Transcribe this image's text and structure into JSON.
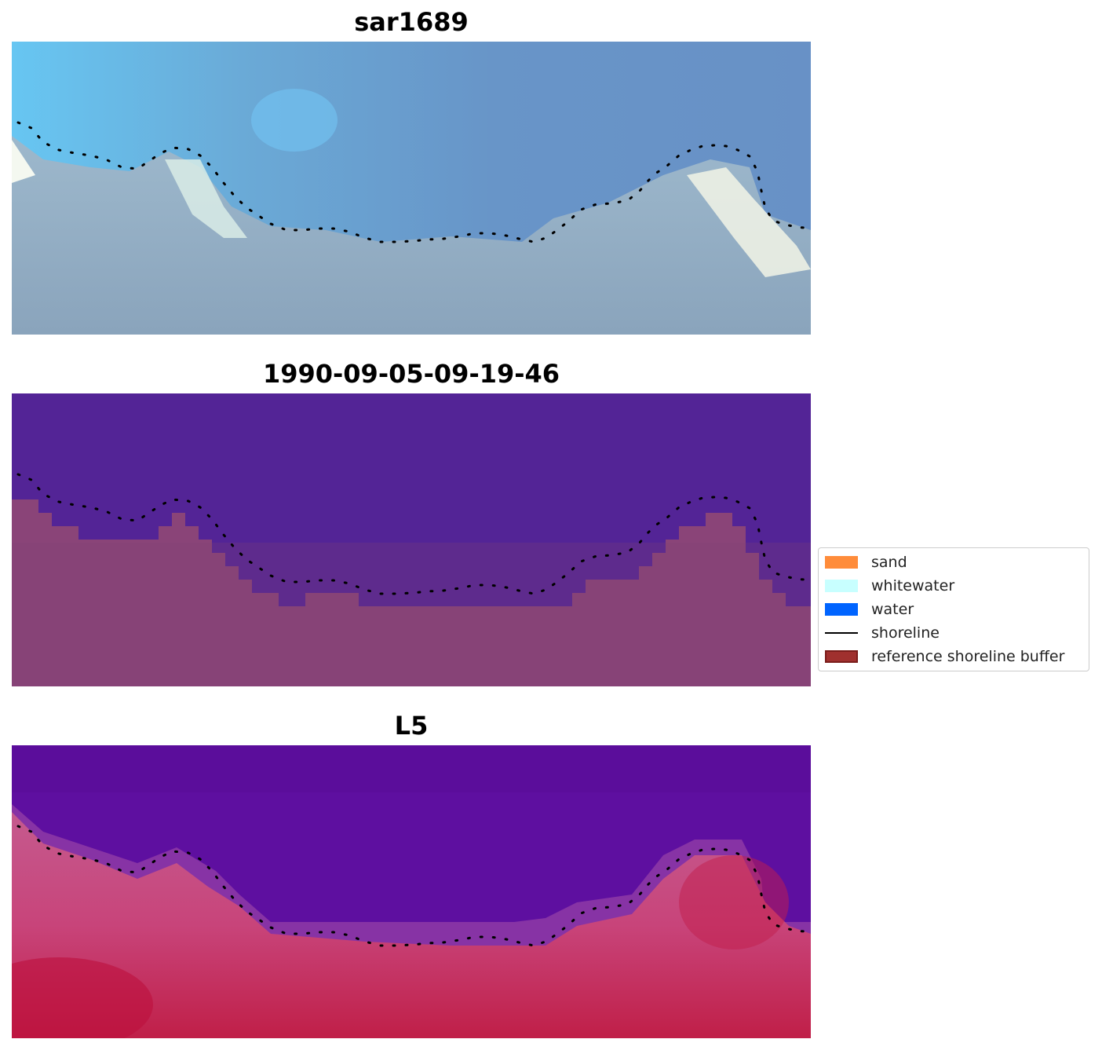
{
  "panels": [
    {
      "title": "sar1689",
      "kind": "rgb"
    },
    {
      "title": "1990-09-05-09-19-46",
      "kind": "classified"
    },
    {
      "title": "L5",
      "kind": "index"
    }
  ],
  "legend": {
    "items": [
      {
        "label": "sand",
        "color": "#ff8c3a",
        "type": "patch"
      },
      {
        "label": "whitewater",
        "color": "#c8ffff",
        "type": "patch"
      },
      {
        "label": "water",
        "color": "#0064ff",
        "type": "patch"
      },
      {
        "label": "shoreline",
        "color": "#000000",
        "type": "line"
      },
      {
        "label": "reference shoreline buffer",
        "color": "#a0302e",
        "type": "patch"
      }
    ]
  },
  "colors": {
    "rgb_sky": "#6a9ccb",
    "classified_water": "#532496",
    "classified_land": "#8a4478",
    "index_water": "#5e0fa0",
    "index_land": "#c2305c"
  }
}
